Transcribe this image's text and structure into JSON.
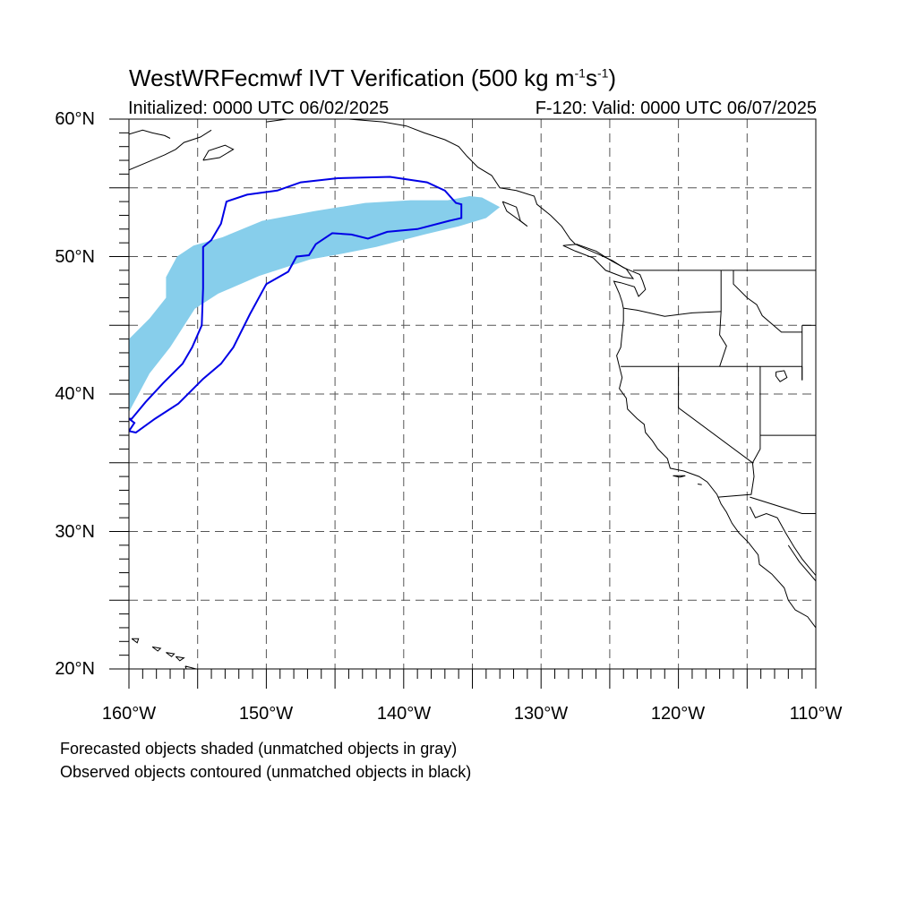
{
  "title": {
    "prefix": "WestWRFecmwf IVT Verification (500 kg m",
    "sup1": "-1",
    "mid": "s",
    "sup2": "-1",
    "suffix": ")"
  },
  "subtitle_left": "Initialized: 0000 UTC 06/02/2025",
  "subtitle_right": "F-120: Valid: 0000 UTC 06/07/2025",
  "lat_labels": [
    "60°N",
    "50°N",
    "40°N",
    "30°N",
    "20°N"
  ],
  "lon_labels": [
    "160°W",
    "150°W",
    "140°W",
    "130°W",
    "120°W",
    "110°W"
  ],
  "notes": [
    "Forecasted objects shaded (unmatched objects in gray)",
    "Observed objects contoured (unmatched objects in black)"
  ],
  "colors": {
    "forecast_fill": "#87ceeb",
    "observed_contour": "#0000e6",
    "grid": "#555555",
    "coast": "#000000"
  },
  "map_extent": {
    "lon_min": -160,
    "lon_max": -110,
    "lat_min": 20,
    "lat_max": 60
  },
  "forecast_object": [
    [
      -160,
      38.7
    ],
    [
      -160,
      44
    ],
    [
      -158.5,
      45.5
    ],
    [
      -157.3,
      47
    ],
    [
      -157.3,
      48.5
    ],
    [
      -156.5,
      50
    ],
    [
      -155.3,
      50.8
    ],
    [
      -153.2,
      51.4
    ],
    [
      -150.3,
      52.6
    ],
    [
      -146.5,
      53.3
    ],
    [
      -142.8,
      53.9
    ],
    [
      -139.5,
      54.1
    ],
    [
      -136.8,
      54.1
    ],
    [
      -135.2,
      54.4
    ],
    [
      -134.3,
      54.3
    ],
    [
      -133,
      53.6
    ],
    [
      -134,
      52.8
    ],
    [
      -136,
      52.2
    ],
    [
      -138.5,
      51.6
    ],
    [
      -142,
      50.7
    ],
    [
      -144.5,
      50.2
    ],
    [
      -146.8,
      49.8
    ],
    [
      -150.5,
      48.6
    ],
    [
      -153.5,
      47.3
    ],
    [
      -155.2,
      46.2
    ],
    [
      -157,
      43.4
    ],
    [
      -158.5,
      41.5
    ],
    [
      -160,
      38.7
    ]
  ],
  "observed_object": [
    [
      -159.8,
      38.2
    ],
    [
      -158.8,
      39.4
    ],
    [
      -157.5,
      40.8
    ],
    [
      -156.1,
      42.2
    ],
    [
      -155.4,
      43.4
    ],
    [
      -154.7,
      45
    ],
    [
      -154.6,
      47.7
    ],
    [
      -154.6,
      50.7
    ],
    [
      -154.0,
      51.2
    ],
    [
      -153.3,
      52.4
    ],
    [
      -152.9,
      54.0
    ],
    [
      -151.4,
      54.5
    ],
    [
      -149.2,
      54.8
    ],
    [
      -147.5,
      55.4
    ],
    [
      -144.8,
      55.7
    ],
    [
      -141.0,
      55.8
    ],
    [
      -138.3,
      55.4
    ],
    [
      -137.0,
      54.8
    ],
    [
      -136.2,
      53.9
    ],
    [
      -135.8,
      53.8
    ],
    [
      -135.8,
      52.8
    ],
    [
      -136.7,
      52.6
    ],
    [
      -139,
      52
    ],
    [
      -141.2,
      51.8
    ],
    [
      -142.6,
      51.3
    ],
    [
      -143.8,
      51.6
    ],
    [
      -145.2,
      51.7
    ],
    [
      -146.4,
      50.9
    ],
    [
      -146.9,
      50.1
    ],
    [
      -147.8,
      50.0
    ],
    [
      -148.4,
      48.9
    ],
    [
      -150,
      48
    ],
    [
      -151.2,
      45.8
    ],
    [
      -152.4,
      43.4
    ],
    [
      -153.3,
      42.2
    ],
    [
      -154.6,
      41.1
    ],
    [
      -156.4,
      39.3
    ],
    [
      -158.1,
      38.2
    ],
    [
      -159.5,
      37.2
    ],
    [
      -160,
      37.3
    ],
    [
      -159.6,
      37.9
    ],
    [
      -160,
      38.2
    ]
  ]
}
